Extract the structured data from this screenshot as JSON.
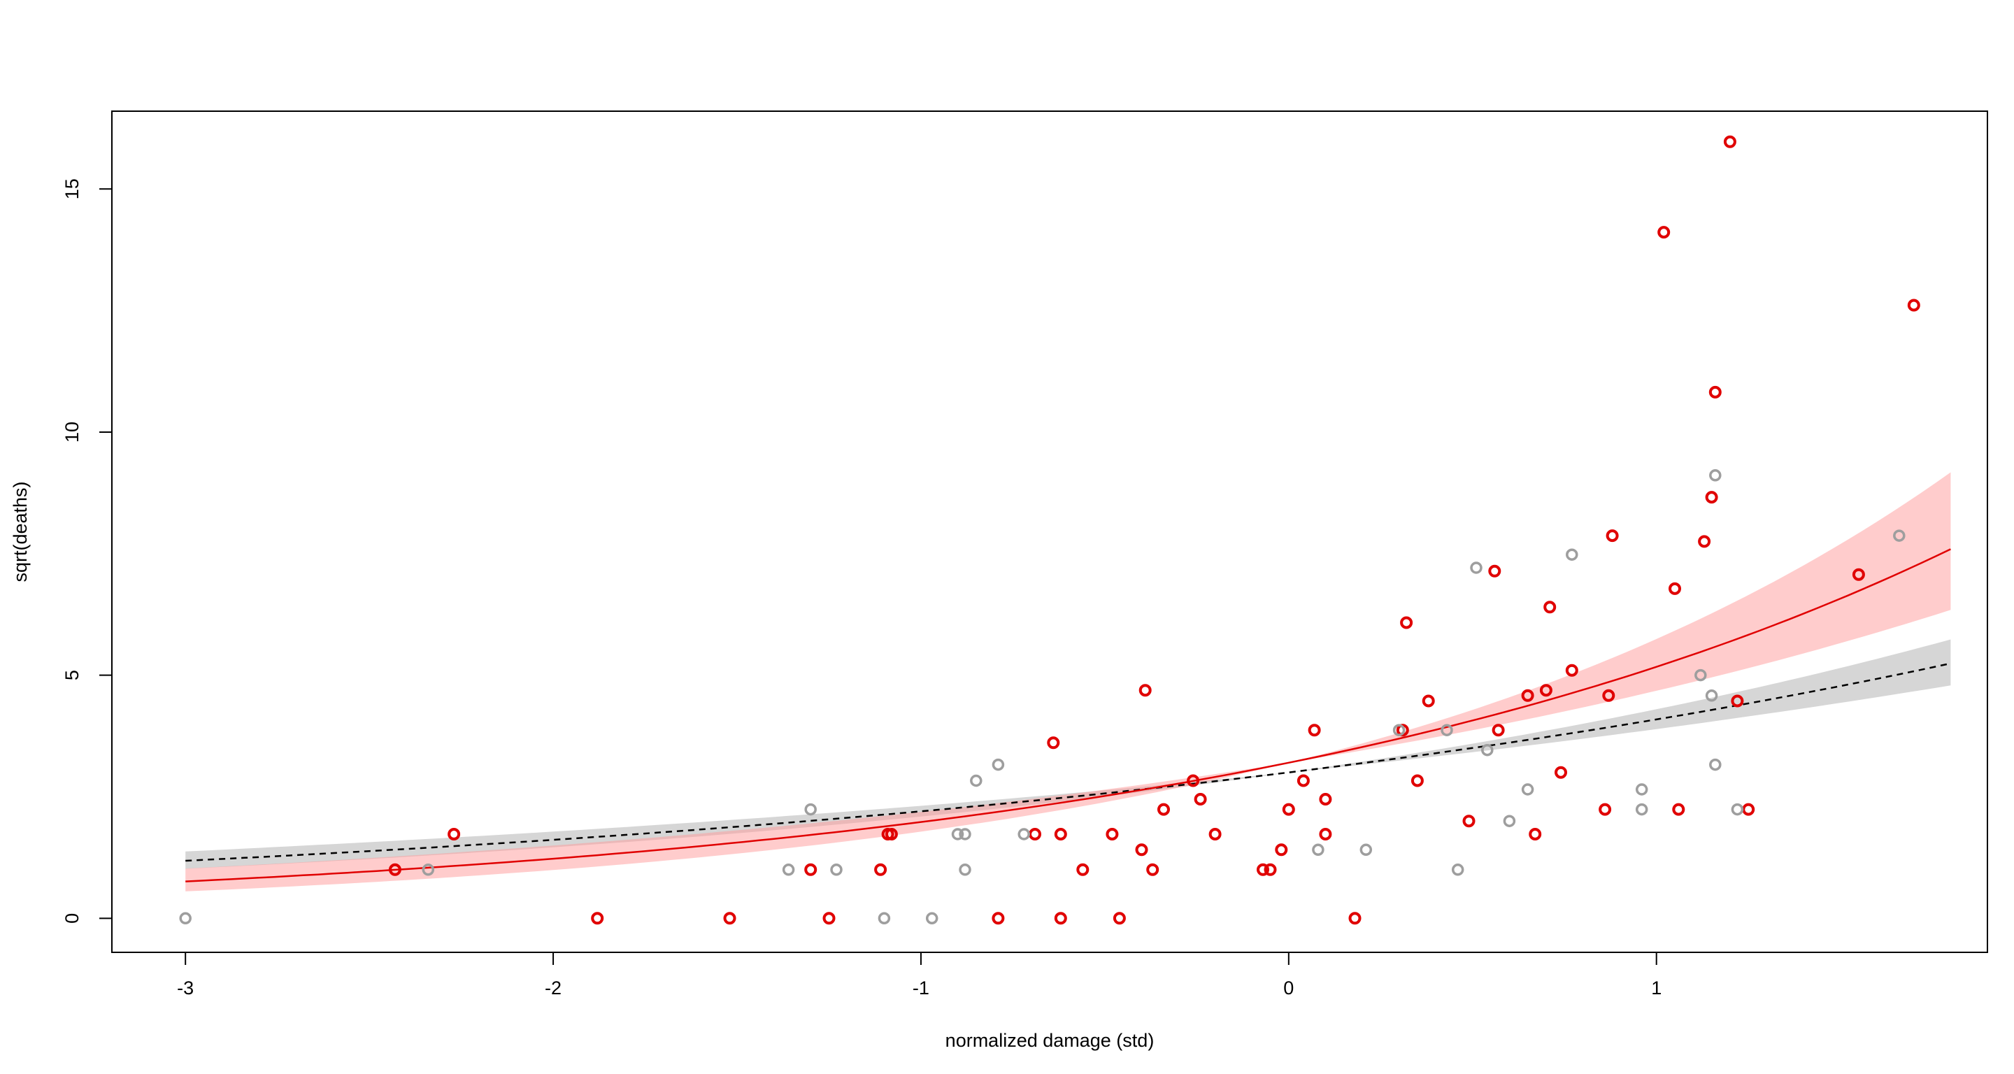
{
  "chart_data": {
    "type": "scatter",
    "xlabel": "normalized damage (std)",
    "ylabel": "sqrt(deaths)",
    "xlim": [
      -3.2,
      1.9
    ],
    "ylim": [
      -0.7,
      16.6
    ],
    "x_ticks": [
      -3,
      -2,
      -1,
      0,
      1
    ],
    "y_ticks": [
      0,
      5,
      10,
      15
    ],
    "grid": false,
    "legend": "none",
    "colors": {
      "red_points": "#e00000",
      "gray_points": "#9e9e9e",
      "red_line": "#e00000",
      "black_line": "#000000",
      "red_band": "#ff9a9a",
      "gray_band": "#cfcfcf"
    },
    "curves": {
      "x_min": -3.0,
      "x_max": 1.8,
      "red_fit": {
        "sqrt_a": 3.2,
        "b": 0.96,
        "band_lo": 0.76,
        "band_hi": 1.17
      },
      "black_fit": {
        "sqrt_a": 3.0,
        "b": 0.62,
        "band_lo": 0.52,
        "band_hi": 0.72
      }
    },
    "series": [
      {
        "color": "red",
        "points": [
          [
            -2.43,
            1.0
          ],
          [
            -2.27,
            1.73
          ],
          [
            -1.88,
            0.0
          ],
          [
            -1.52,
            0.0
          ],
          [
            -1.3,
            1.0
          ],
          [
            -1.25,
            0.0
          ],
          [
            -1.11,
            1.0
          ],
          [
            -1.09,
            1.73
          ],
          [
            -1.08,
            1.73
          ],
          [
            -0.79,
            0.0
          ],
          [
            -0.69,
            1.73
          ],
          [
            -0.64,
            3.61
          ],
          [
            -0.62,
            1.73
          ],
          [
            -0.62,
            0.0
          ],
          [
            -0.56,
            1.0
          ],
          [
            -0.48,
            1.73
          ],
          [
            -0.46,
            0.0
          ],
          [
            -0.4,
            1.41
          ],
          [
            -0.39,
            4.69
          ],
          [
            -0.37,
            1.0
          ],
          [
            -0.34,
            2.24
          ],
          [
            -0.26,
            2.83
          ],
          [
            -0.24,
            2.45
          ],
          [
            -0.2,
            1.73
          ],
          [
            -0.07,
            1.0
          ],
          [
            -0.05,
            1.0
          ],
          [
            -0.02,
            1.41
          ],
          [
            0.0,
            2.24
          ],
          [
            0.04,
            2.83
          ],
          [
            0.07,
            3.87
          ],
          [
            0.1,
            1.73
          ],
          [
            0.1,
            2.45
          ],
          [
            0.18,
            0.0
          ],
          [
            0.31,
            3.87
          ],
          [
            0.32,
            6.08
          ],
          [
            0.35,
            2.83
          ],
          [
            0.38,
            4.47
          ],
          [
            0.49,
            2.0
          ],
          [
            0.56,
            7.14
          ],
          [
            0.57,
            3.87
          ],
          [
            0.65,
            4.58
          ],
          [
            0.67,
            1.73
          ],
          [
            0.7,
            4.69
          ],
          [
            0.71,
            6.4
          ],
          [
            0.74,
            3.0
          ],
          [
            0.77,
            5.1
          ],
          [
            0.86,
            2.24
          ],
          [
            0.87,
            4.58
          ],
          [
            0.88,
            7.87
          ],
          [
            1.02,
            14.11
          ],
          [
            1.05,
            6.78
          ],
          [
            1.06,
            2.24
          ],
          [
            1.13,
            7.75
          ],
          [
            1.15,
            8.66
          ],
          [
            1.16,
            10.82
          ],
          [
            1.2,
            15.97
          ],
          [
            1.22,
            4.47
          ],
          [
            1.25,
            2.24
          ],
          [
            1.55,
            7.07
          ],
          [
            1.7,
            12.61
          ]
        ]
      },
      {
        "color": "gray",
        "points": [
          [
            -3.0,
            0.0
          ],
          [
            -2.34,
            1.0
          ],
          [
            -1.36,
            1.0
          ],
          [
            -1.3,
            2.24
          ],
          [
            -1.23,
            1.0
          ],
          [
            -1.1,
            0.0
          ],
          [
            -0.97,
            0.0
          ],
          [
            -0.9,
            1.73
          ],
          [
            -0.88,
            1.73
          ],
          [
            -0.88,
            1.0
          ],
          [
            -0.85,
            2.83
          ],
          [
            -0.79,
            3.16
          ],
          [
            -0.72,
            1.73
          ],
          [
            0.08,
            1.41
          ],
          [
            0.21,
            1.41
          ],
          [
            0.3,
            3.87
          ],
          [
            0.43,
            3.87
          ],
          [
            0.46,
            1.0
          ],
          [
            0.51,
            7.21
          ],
          [
            0.54,
            3.46
          ],
          [
            0.6,
            2.0
          ],
          [
            0.65,
            2.65
          ],
          [
            0.77,
            7.48
          ],
          [
            0.96,
            2.24
          ],
          [
            0.96,
            2.65
          ],
          [
            1.12,
            5.0
          ],
          [
            1.15,
            4.58
          ],
          [
            1.16,
            3.16
          ],
          [
            1.16,
            9.11
          ],
          [
            1.22,
            2.24
          ],
          [
            1.66,
            7.87
          ]
        ]
      }
    ]
  }
}
